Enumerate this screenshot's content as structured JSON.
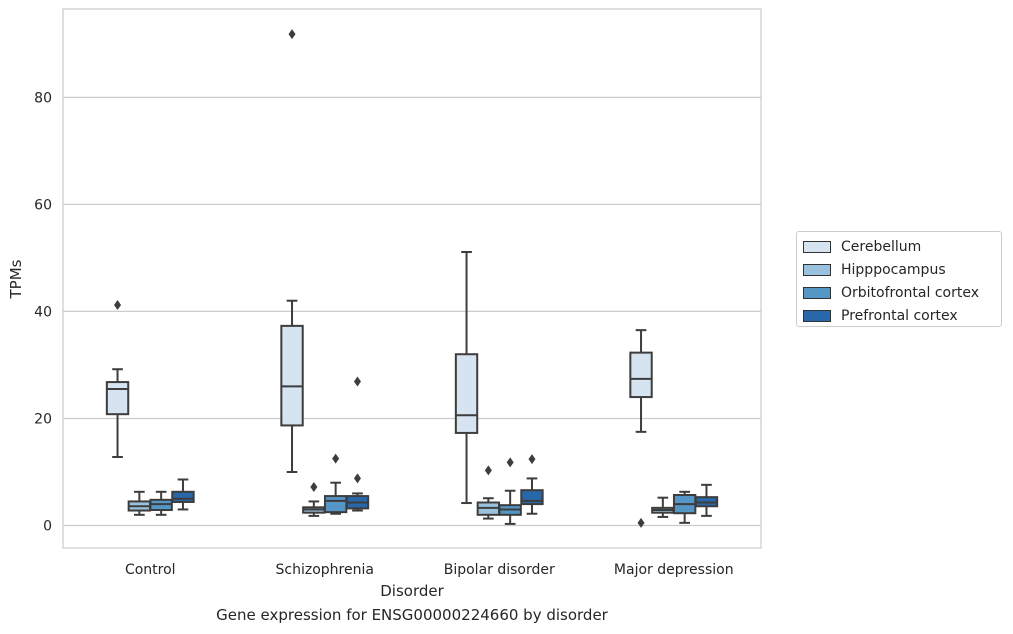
{
  "caption": "Gene expression for ENSG00000224660 by disorder",
  "legend": {
    "items": [
      {
        "label": "Cerebellum",
        "color": "#d6e4f2"
      },
      {
        "label": "Hipppocampus",
        "color": "#9ac2de"
      },
      {
        "label": "Orbitofrontal cortex",
        "color": "#5496c6"
      },
      {
        "label": "Prefrontal cortex",
        "color": "#2868aa"
      }
    ]
  },
  "chart_data": {
    "type": "box",
    "xlabel": "Disorder",
    "ylabel": "TPMs",
    "ylim": [
      -4.2,
      96.5
    ],
    "yticks": [
      0,
      20,
      40,
      60,
      80
    ],
    "grid": "horizontal",
    "legend_position": "right",
    "categories": [
      "Control",
      "Schizophrenia",
      "Bipolar disorder",
      "Major depression"
    ],
    "series": [
      {
        "name": "Cerebellum",
        "color": "#d6e4f2",
        "boxes": [
          {
            "whisker_low": 12.8,
            "q1": 20.8,
            "median": 25.5,
            "q3": 26.8,
            "whisker_high": 29.2,
            "outliers": [
              41.2
            ]
          },
          {
            "whisker_low": 10.0,
            "q1": 18.7,
            "median": 26.0,
            "q3": 37.3,
            "whisker_high": 42.0,
            "outliers": [
              91.8
            ]
          },
          {
            "whisker_low": 4.2,
            "q1": 17.3,
            "median": 20.6,
            "q3": 32.0,
            "whisker_high": 51.1,
            "outliers": []
          },
          {
            "whisker_low": 17.5,
            "q1": 24.0,
            "median": 27.4,
            "q3": 32.3,
            "whisker_high": 36.5,
            "outliers": [
              0.5
            ]
          }
        ]
      },
      {
        "name": "Hipppocampus",
        "color": "#9ac2de",
        "boxes": [
          {
            "whisker_low": 2.0,
            "q1": 2.8,
            "median": 3.6,
            "q3": 4.5,
            "whisker_high": 6.3,
            "outliers": []
          },
          {
            "whisker_low": 1.8,
            "q1": 2.4,
            "median": 3.0,
            "q3": 3.4,
            "whisker_high": 4.5,
            "outliers": [
              7.2
            ]
          },
          {
            "whisker_low": 1.3,
            "q1": 2.0,
            "median": 3.3,
            "q3": 4.3,
            "whisker_high": 5.1,
            "outliers": [
              10.3
            ]
          },
          {
            "whisker_low": 1.6,
            "q1": 2.4,
            "median": 2.9,
            "q3": 3.3,
            "whisker_high": 5.2,
            "outliers": []
          }
        ]
      },
      {
        "name": "Orbitofrontal cortex",
        "color": "#5496c6",
        "boxes": [
          {
            "whisker_low": 2.0,
            "q1": 2.9,
            "median": 4.0,
            "q3": 4.8,
            "whisker_high": 6.3,
            "outliers": []
          },
          {
            "whisker_low": 2.2,
            "q1": 2.5,
            "median": 4.6,
            "q3": 5.5,
            "whisker_high": 8.0,
            "outliers": [
              12.5
            ]
          },
          {
            "whisker_low": 0.3,
            "q1": 2.0,
            "median": 3.0,
            "q3": 3.8,
            "whisker_high": 6.5,
            "outliers": [
              11.8
            ]
          },
          {
            "whisker_low": 0.5,
            "q1": 2.3,
            "median": 4.0,
            "q3": 5.7,
            "whisker_high": 6.3,
            "outliers": []
          }
        ]
      },
      {
        "name": "Prefrontal cortex",
        "color": "#2868aa",
        "boxes": [
          {
            "whisker_low": 3.0,
            "q1": 4.4,
            "median": 5.0,
            "q3": 6.3,
            "whisker_high": 8.6,
            "outliers": []
          },
          {
            "whisker_low": 2.8,
            "q1": 3.2,
            "median": 4.3,
            "q3": 5.5,
            "whisker_high": 6.0,
            "outliers": [
              8.8,
              26.9
            ]
          },
          {
            "whisker_low": 2.2,
            "q1": 4.0,
            "median": 4.6,
            "q3": 6.6,
            "whisker_high": 8.8,
            "outliers": [
              12.4
            ]
          },
          {
            "whisker_low": 1.8,
            "q1": 3.6,
            "median": 4.3,
            "q3": 5.3,
            "whisker_high": 7.6,
            "outliers": []
          }
        ]
      }
    ]
  }
}
